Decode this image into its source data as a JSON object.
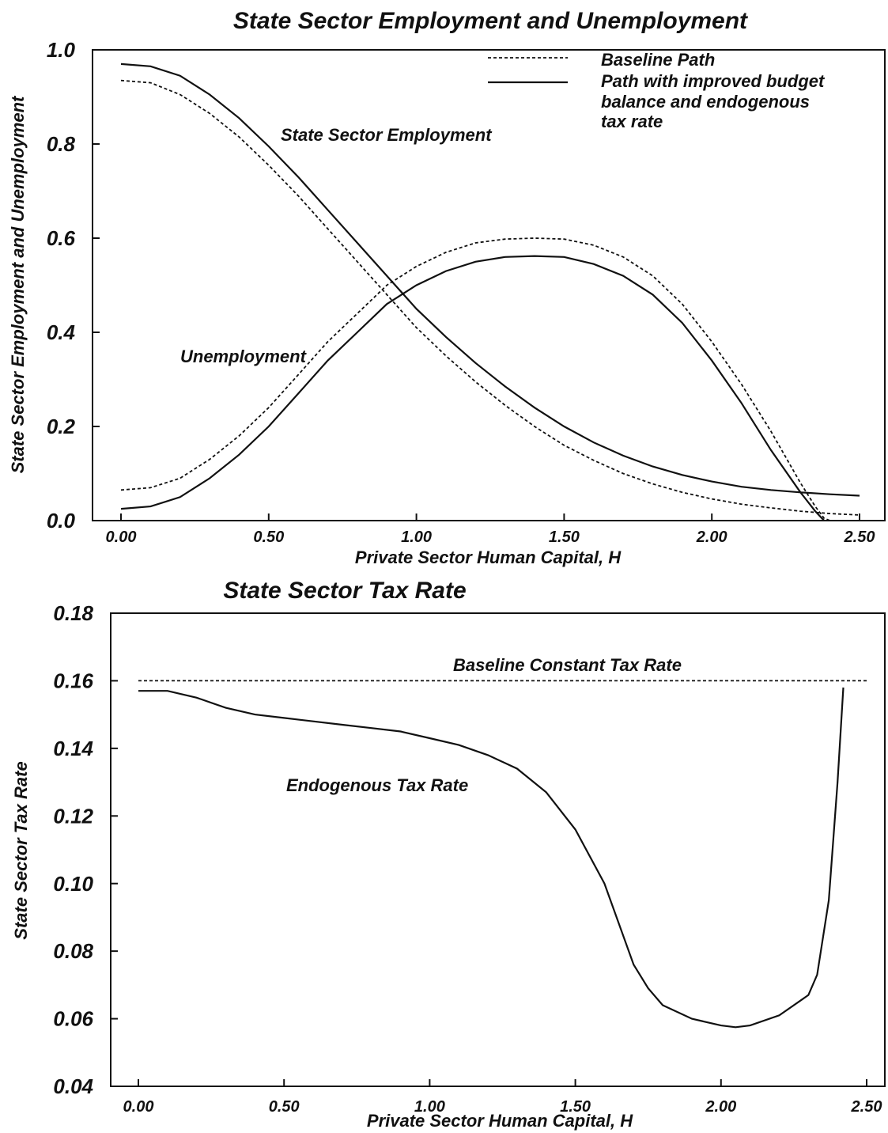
{
  "chart_data": [
    {
      "type": "line",
      "title": "State Sector Employment and Unemployment",
      "xlabel": "Private Sector Human Capital, H",
      "ylabel": "State Sector Employment and Unemployment",
      "xlim": [
        0,
        2.5
      ],
      "ylim": [
        0,
        1.0
      ],
      "xticks": [
        "0.00",
        "0.50",
        "1.00",
        "1.50",
        "2.00",
        "2.50"
      ],
      "yticks": [
        "0.0",
        "0.2",
        "0.4",
        "0.6",
        "0.8",
        "1.0"
      ],
      "legend": {
        "placement": "top-right",
        "entries": [
          {
            "label": "Baseline Path",
            "style": "dashed"
          },
          {
            "label": "Path with improved budget balance and endogenous tax rate",
            "lines": [
              "Path with improved budget",
              "balance and endogenous",
              "tax rate"
            ],
            "style": "solid"
          }
        ]
      },
      "annotations": [
        "State Sector Employment",
        "Unemployment"
      ],
      "series": [
        {
          "group": "State Sector Employment",
          "style": "dashed",
          "x": [
            0.0,
            0.1,
            0.2,
            0.3,
            0.4,
            0.5,
            0.6,
            0.7,
            0.8,
            0.9,
            1.0,
            1.1,
            1.2,
            1.3,
            1.4,
            1.5,
            1.6,
            1.7,
            1.8,
            1.9,
            2.0,
            2.1,
            2.2,
            2.3,
            2.4,
            2.5
          ],
          "y": [
            0.935,
            0.93,
            0.905,
            0.865,
            0.815,
            0.755,
            0.69,
            0.62,
            0.55,
            0.48,
            0.41,
            0.35,
            0.295,
            0.245,
            0.2,
            0.16,
            0.128,
            0.1,
            0.078,
            0.06,
            0.046,
            0.035,
            0.027,
            0.02,
            0.015,
            0.012
          ]
        },
        {
          "group": "State Sector Employment",
          "style": "solid",
          "x": [
            0.0,
            0.1,
            0.2,
            0.3,
            0.4,
            0.5,
            0.6,
            0.7,
            0.8,
            0.9,
            1.0,
            1.1,
            1.2,
            1.3,
            1.4,
            1.5,
            1.6,
            1.7,
            1.8,
            1.9,
            2.0,
            2.1,
            2.2,
            2.3,
            2.4,
            2.5
          ],
          "y": [
            0.97,
            0.965,
            0.945,
            0.905,
            0.855,
            0.795,
            0.73,
            0.66,
            0.59,
            0.52,
            0.45,
            0.39,
            0.335,
            0.285,
            0.24,
            0.2,
            0.166,
            0.138,
            0.115,
            0.097,
            0.083,
            0.072,
            0.065,
            0.06,
            0.056,
            0.053
          ]
        },
        {
          "group": "Unemployment",
          "style": "dashed",
          "x": [
            0.0,
            0.1,
            0.2,
            0.3,
            0.4,
            0.5,
            0.6,
            0.7,
            0.8,
            0.9,
            1.0,
            1.1,
            1.2,
            1.3,
            1.4,
            1.5,
            1.6,
            1.7,
            1.8,
            1.9,
            2.0,
            2.1,
            2.2,
            2.3,
            2.35,
            2.38,
            2.4
          ],
          "y": [
            0.065,
            0.07,
            0.09,
            0.13,
            0.18,
            0.24,
            0.31,
            0.38,
            0.44,
            0.5,
            0.54,
            0.57,
            0.59,
            0.598,
            0.6,
            0.598,
            0.585,
            0.56,
            0.52,
            0.46,
            0.38,
            0.29,
            0.19,
            0.08,
            0.03,
            0.005,
            0.0
          ]
        },
        {
          "group": "Unemployment",
          "style": "solid",
          "x": [
            0.0,
            0.1,
            0.2,
            0.3,
            0.4,
            0.5,
            0.6,
            0.7,
            0.8,
            0.9,
            1.0,
            1.1,
            1.2,
            1.3,
            1.4,
            1.5,
            1.6,
            1.7,
            1.8,
            1.9,
            2.0,
            2.1,
            2.2,
            2.3,
            2.35,
            2.38
          ],
          "y": [
            0.025,
            0.03,
            0.05,
            0.09,
            0.14,
            0.2,
            0.27,
            0.34,
            0.4,
            0.46,
            0.5,
            0.53,
            0.55,
            0.56,
            0.562,
            0.56,
            0.545,
            0.52,
            0.48,
            0.42,
            0.34,
            0.25,
            0.15,
            0.06,
            0.02,
            0.0
          ]
        }
      ]
    },
    {
      "type": "line",
      "title": "State Sector Tax Rate",
      "xlabel": "Private Sector Human Capital, H",
      "ylabel": "State Sector Tax Rate",
      "xlim": [
        -0.07,
        2.55
      ],
      "ylim": [
        0.04,
        0.18
      ],
      "xticks": [
        "0.00",
        "0.50",
        "1.00",
        "1.50",
        "2.00",
        "2.50"
      ],
      "yticks": [
        "0.04",
        "0.06",
        "0.08",
        "0.10",
        "0.12",
        "0.14",
        "0.16",
        "0.18"
      ],
      "annotations": [
        "Baseline Constant Tax Rate",
        "Endogenous Tax Rate"
      ],
      "series": [
        {
          "name": "Baseline Constant Tax Rate",
          "style": "dashed",
          "x": [
            0.0,
            2.5
          ],
          "y": [
            0.16,
            0.16
          ]
        },
        {
          "name": "Endogenous Tax Rate",
          "style": "solid",
          "x": [
            0.0,
            0.1,
            0.2,
            0.3,
            0.4,
            0.5,
            0.6,
            0.7,
            0.8,
            0.9,
            1.0,
            1.1,
            1.2,
            1.3,
            1.4,
            1.5,
            1.6,
            1.7,
            1.75,
            1.8,
            1.9,
            2.0,
            2.05,
            2.1,
            2.2,
            2.3,
            2.33,
            2.37,
            2.4,
            2.42
          ],
          "y": [
            0.157,
            0.157,
            0.155,
            0.152,
            0.15,
            0.149,
            0.148,
            0.147,
            0.146,
            0.145,
            0.143,
            0.141,
            0.138,
            0.134,
            0.127,
            0.116,
            0.1,
            0.076,
            0.069,
            0.064,
            0.06,
            0.058,
            0.0575,
            0.058,
            0.061,
            0.067,
            0.073,
            0.095,
            0.13,
            0.158
          ]
        }
      ]
    }
  ]
}
